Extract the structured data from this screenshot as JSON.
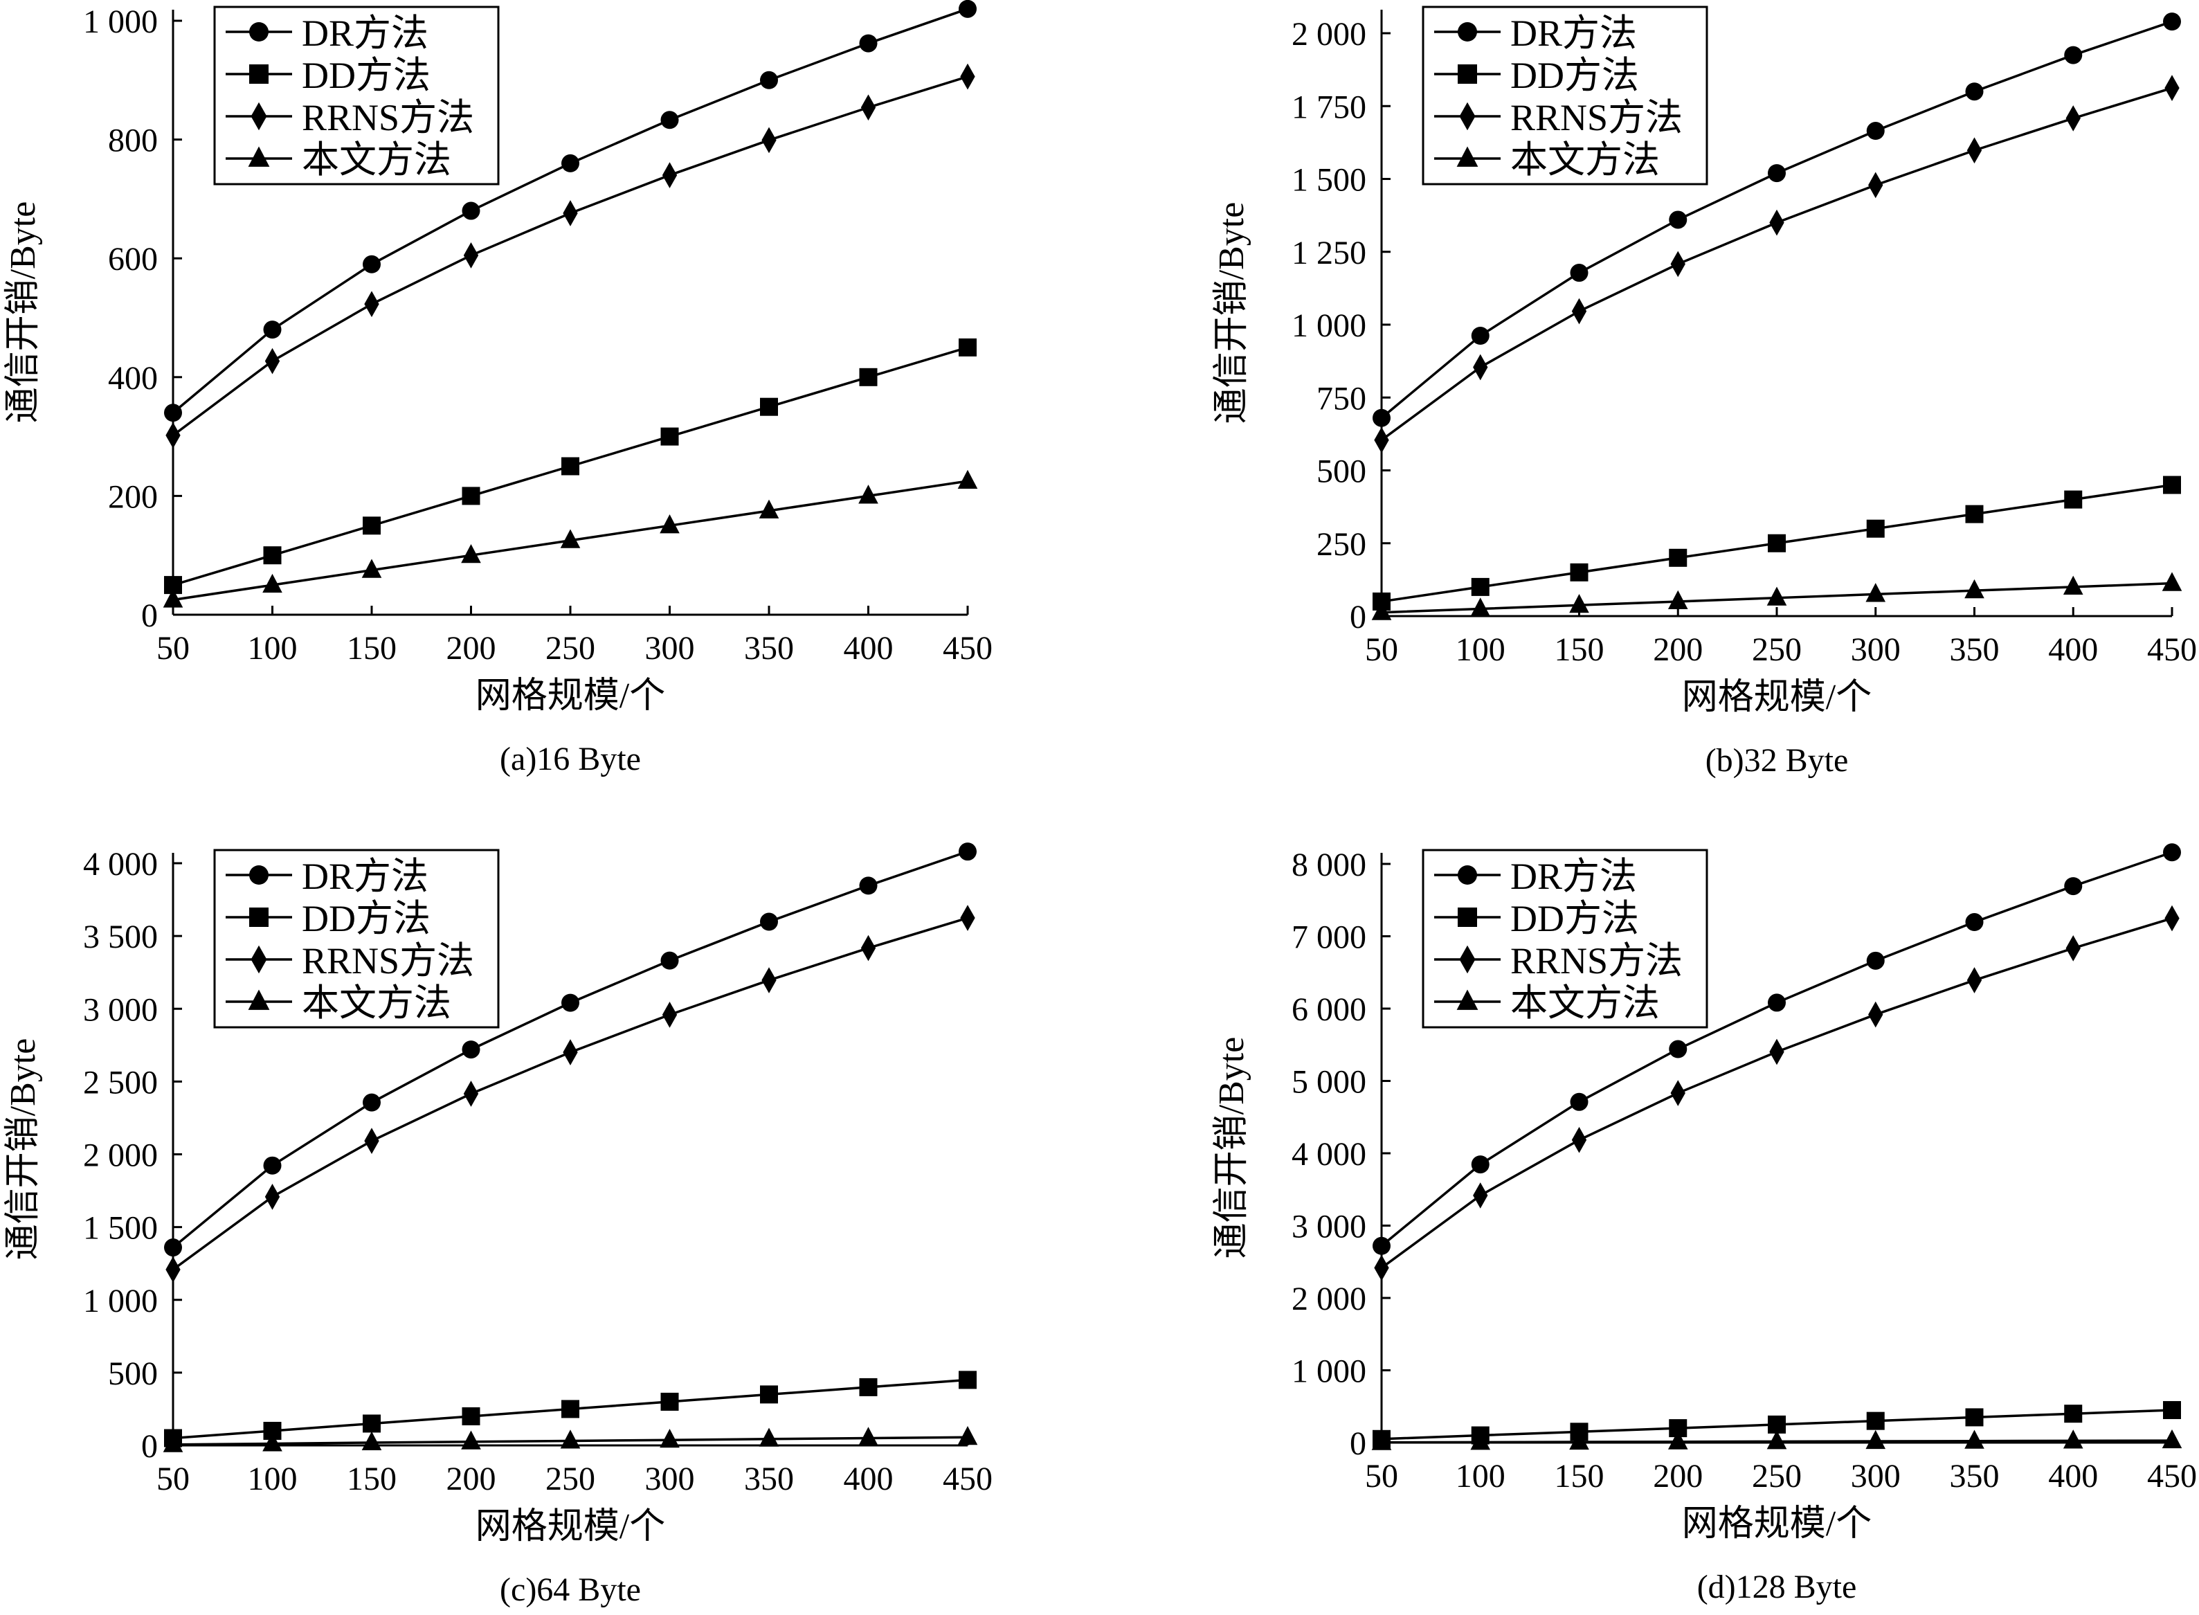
{
  "legend_markers": [
    "circle",
    "square",
    "diamond",
    "triangle"
  ],
  "colors": {
    "line": "#000000",
    "background": "#ffffff"
  },
  "chart_data": [
    {
      "type": "line",
      "caption": "(a)16 Byte",
      "xlabel": "网格规模/个",
      "ylabel": "通信开销/Byte",
      "x": [
        50,
        100,
        150,
        200,
        250,
        300,
        350,
        400,
        450
      ],
      "xlim": [
        50,
        450
      ],
      "ylim": [
        0,
        1000
      ],
      "yticks": [
        0,
        200,
        400,
        600,
        800,
        1000
      ],
      "ytick_labels": [
        "0",
        "200",
        "400",
        "600",
        "800",
        "1 000"
      ],
      "xtick_labels": [
        "50",
        "100",
        "150",
        "200",
        "250",
        "300",
        "350",
        "400",
        "450"
      ],
      "legend_position": "top-left",
      "grid": false,
      "series": [
        {
          "name": "DR方法",
          "marker": "circle",
          "values": [
            340,
            480,
            590,
            680,
            760,
            833,
            900,
            962,
            1020
          ]
        },
        {
          "name": "DD方法",
          "marker": "square",
          "values": [
            50,
            100,
            150,
            200,
            250,
            300,
            350,
            400,
            450
          ]
        },
        {
          "name": "RRNS方法",
          "marker": "diamond",
          "values": [
            302,
            427,
            523,
            605,
            676,
            740,
            799,
            854,
            906
          ]
        },
        {
          "name": "本文方法",
          "marker": "triangle",
          "values": [
            25,
            50,
            75,
            100,
            125,
            150,
            175,
            200,
            225
          ]
        }
      ]
    },
    {
      "type": "line",
      "caption": "(b)32 Byte",
      "xlabel": "网格规模/个",
      "ylabel": "通信开销/Byte",
      "x": [
        50,
        100,
        150,
        200,
        250,
        300,
        350,
        400,
        450
      ],
      "xlim": [
        50,
        450
      ],
      "ylim": [
        0,
        2000
      ],
      "yticks": [
        0,
        250,
        500,
        750,
        1000,
        1250,
        1500,
        1750,
        2000
      ],
      "ytick_labels": [
        "0",
        "250",
        "500",
        "750",
        "1 000",
        "1 250",
        "1 500",
        "1 750",
        "2 000"
      ],
      "xtick_labels": [
        "50",
        "100",
        "150",
        "200",
        "250",
        "300",
        "350",
        "400",
        "450"
      ],
      "legend_position": "top-left",
      "grid": false,
      "series": [
        {
          "name": "DR方法",
          "marker": "circle",
          "values": [
            680,
            962,
            1178,
            1360,
            1520,
            1665,
            1800,
            1925,
            2040
          ]
        },
        {
          "name": "DD方法",
          "marker": "square",
          "values": [
            50,
            100,
            150,
            200,
            250,
            300,
            350,
            400,
            450
          ]
        },
        {
          "name": "RRNS方法",
          "marker": "diamond",
          "values": [
            604,
            854,
            1046,
            1208,
            1350,
            1479,
            1598,
            1708,
            1812
          ]
        },
        {
          "name": "本文方法",
          "marker": "triangle",
          "values": [
            12.5,
            25,
            37.5,
            50,
            62.5,
            75,
            87.5,
            100,
            112.5
          ]
        }
      ]
    },
    {
      "type": "line",
      "caption": "(c)64 Byte",
      "xlabel": "网格规模/个",
      "ylabel": "通信开销/Byte",
      "x": [
        50,
        100,
        150,
        200,
        250,
        300,
        350,
        400,
        450
      ],
      "xlim": [
        50,
        450
      ],
      "ylim": [
        0,
        4000
      ],
      "yticks": [
        0,
        500,
        1000,
        1500,
        2000,
        2500,
        3000,
        3500,
        4000
      ],
      "ytick_labels": [
        "0",
        "500",
        "1 000",
        "1 500",
        "2 000",
        "2 500",
        "3 000",
        "3 500",
        "4 000"
      ],
      "xtick_labels": [
        "50",
        "100",
        "150",
        "200",
        "250",
        "300",
        "350",
        "400",
        "450"
      ],
      "legend_position": "top-left",
      "grid": false,
      "series": [
        {
          "name": "DR方法",
          "marker": "circle",
          "values": [
            1360,
            1923,
            2356,
            2720,
            3041,
            3331,
            3598,
            3846,
            4080
          ]
        },
        {
          "name": "DD方法",
          "marker": "square",
          "values": [
            50,
            100,
            150,
            200,
            250,
            300,
            350,
            400,
            450
          ]
        },
        {
          "name": "RRNS方法",
          "marker": "diamond",
          "values": [
            1208,
            1708,
            2092,
            2416,
            2701,
            2959,
            3196,
            3417,
            3624
          ]
        },
        {
          "name": "本文方法",
          "marker": "triangle",
          "values": [
            6,
            12,
            19,
            25,
            31,
            37,
            44,
            50,
            56
          ]
        }
      ]
    },
    {
      "type": "line",
      "caption": "(d)128 Byte",
      "xlabel": "网格规模/个",
      "ylabel": "通信开销/Byte",
      "x": [
        50,
        100,
        150,
        200,
        250,
        300,
        350,
        400,
        450
      ],
      "xlim": [
        50,
        450
      ],
      "ylim": [
        0,
        8000
      ],
      "yticks": [
        0,
        1000,
        2000,
        3000,
        4000,
        5000,
        6000,
        7000,
        8000
      ],
      "ytick_labels": [
        "0",
        "1 000",
        "2 000",
        "3 000",
        "4 000",
        "5 000",
        "6 000",
        "7 000",
        "8 000"
      ],
      "xtick_labels": [
        "50",
        "100",
        "150",
        "200",
        "250",
        "300",
        "350",
        "400",
        "450"
      ],
      "legend_position": "top-left",
      "grid": false,
      "series": [
        {
          "name": "DR方法",
          "marker": "circle",
          "values": [
            2720,
            3846,
            4710,
            5440,
            6082,
            6662,
            7196,
            7693,
            8160
          ]
        },
        {
          "name": "DD方法",
          "marker": "square",
          "values": [
            50,
            100,
            150,
            200,
            250,
            300,
            350,
            400,
            450
          ]
        },
        {
          "name": "RRNS方法",
          "marker": "diamond",
          "values": [
            2416,
            3417,
            4184,
            4832,
            5402,
            5918,
            6392,
            6834,
            7248
          ]
        },
        {
          "name": "本文方法",
          "marker": "triangle",
          "values": [
            3,
            6,
            9,
            12,
            16,
            19,
            22,
            25,
            28
          ]
        }
      ]
    }
  ]
}
